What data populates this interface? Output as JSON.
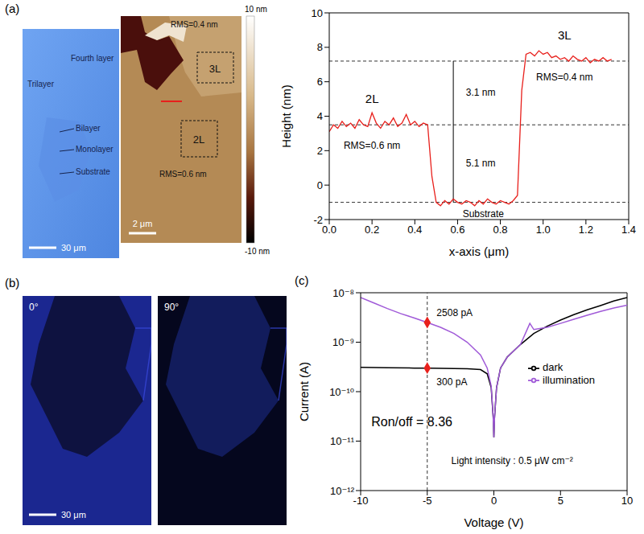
{
  "panel_labels": [
    "(a)",
    "(b)",
    "(c)"
  ],
  "images": {
    "optical": {
      "labels": [
        "Fourth layer",
        "Trilayer",
        "Bilayer",
        "Monolayer",
        "Substrate"
      ],
      "scale_bar": "30 μm"
    },
    "afm": {
      "labels": [
        "RMS=0.4 nm",
        "3L",
        "2L",
        "RMS=0.6 nm"
      ],
      "scale_bar": "2 μm",
      "colorbar": {
        "range": [
          -10,
          10
        ],
        "ticks": [
          {
            "value": 10,
            "label": "10 nm"
          },
          {
            "value": -10,
            "label": "-10 nm"
          }
        ]
      }
    },
    "polarized": [
      {
        "label": "0°",
        "scale_bar": "30 μm"
      },
      {
        "label": "90°"
      }
    ]
  },
  "chart_data": [
    {
      "type": "line",
      "xlabel": "x-axis (μm)",
      "ylabel": "Height (nm)",
      "xlim": [
        0,
        1.4
      ],
      "xticks": [
        {
          "value": 0,
          "label": "0.0"
        },
        0.2,
        0.4,
        0.6,
        0.8,
        {
          "value": 1,
          "label": "1.0"
        },
        1.2,
        1.4
      ],
      "ylim": [
        -2,
        10
      ],
      "yticks": [
        -2,
        0,
        2,
        4,
        6,
        8,
        10
      ],
      "series": [
        {
          "color": "#e8201c",
          "x": [
            0,
            0.02,
            0.04,
            0.06,
            0.08,
            0.1,
            0.12,
            0.14,
            0.16,
            0.18,
            0.2,
            0.22,
            0.24,
            0.26,
            0.28,
            0.3,
            0.32,
            0.34,
            0.36,
            0.38,
            0.4,
            0.42,
            0.44,
            0.46,
            0.48,
            0.5,
            0.52,
            0.54,
            0.56,
            0.58,
            0.6,
            0.62,
            0.64,
            0.66,
            0.68,
            0.7,
            0.72,
            0.74,
            0.76,
            0.78,
            0.8,
            0.82,
            0.84,
            0.86,
            0.88,
            0.9,
            0.92,
            0.94,
            0.96,
            0.98,
            1,
            1.02,
            1.04,
            1.06,
            1.08,
            1.1,
            1.12,
            1.14,
            1.16,
            1.18,
            1.2,
            1.22,
            1.24,
            1.26,
            1.28,
            1.3,
            1.32
          ],
          "values": [
            3.1,
            3.5,
            3.3,
            3.7,
            3.4,
            3.6,
            3.3,
            3.8,
            3.5,
            3.4,
            4.2,
            3.6,
            3.3,
            3.7,
            3.5,
            3.9,
            3.4,
            3.6,
            4.1,
            3.5,
            3.7,
            3.4,
            3.6,
            3.5,
            0.5,
            -1.0,
            -1.2,
            -0.9,
            -1.1,
            -0.8,
            -1.0,
            -1.1,
            -0.9,
            -1.0,
            -1.2,
            -0.9,
            -1.1,
            -0.8,
            -1.0,
            -1.1,
            -0.9,
            -1.0,
            -1.1,
            -0.9,
            -0.6,
            5.5,
            7.6,
            7.7,
            7.5,
            7.8,
            7.6,
            7.7,
            7.4,
            7.5,
            7.3,
            7.4,
            7.2,
            7.5,
            7.3,
            7.2,
            7.4,
            7.1,
            7.3,
            7.2,
            7.4,
            7.2,
            7.3
          ]
        }
      ],
      "hlines": [
        7.2,
        3.5,
        -1.0
      ],
      "annotations": [
        "2L",
        "3L",
        "RMS=0.6 nm",
        "RMS=0.4 nm",
        "3.1 nm",
        "5.1 nm",
        "Substrate"
      ]
    },
    {
      "type": "line",
      "log": "y",
      "xlabel": "Voltage (V)",
      "ylabel": "Current (A)",
      "xlim": [
        -10,
        10
      ],
      "xticks": [
        -10,
        -5,
        0,
        5,
        10
      ],
      "ylim": [
        1e-12,
        1e-08
      ],
      "yticks": [
        {
          "value": 1e-12,
          "label": "10⁻¹²"
        },
        {
          "value": 1e-11,
          "label": "10⁻¹¹"
        },
        {
          "value": 1e-10,
          "label": "10⁻¹⁰"
        },
        {
          "value": 1e-09,
          "label": "10⁻⁹"
        },
        {
          "value": 1e-08,
          "label": "10⁻⁸"
        }
      ],
      "legend": "right",
      "series": [
        {
          "name": "dark",
          "color": "#000000",
          "x": [
            -10,
            -8,
            -6,
            -5,
            -4,
            -2,
            -1,
            -0.5,
            -0.2,
            -0.05,
            0,
            0.05,
            0.2,
            0.5,
            1,
            2,
            3,
            4,
            5,
            6,
            7,
            8,
            9,
            10
          ],
          "values": [
            3.1e-10,
            3.05e-10,
            3e-10,
            3e-10,
            2.95e-10,
            2.9e-10,
            2.8e-10,
            2.3e-10,
            1.2e-10,
            3e-11,
            1.2e-11,
            3e-11,
            1.2e-10,
            3e-10,
            5e-10,
            9e-10,
            1.5e-09,
            2.1e-09,
            2.8e-09,
            3.6e-09,
            4.5e-09,
            5.5e-09,
            6.8e-09,
            8e-09
          ]
        },
        {
          "name": "illumination",
          "color": "#a05ad8",
          "x": [
            -10,
            -9,
            -8,
            -7,
            -6,
            -5,
            -4,
            -3,
            -2,
            -1,
            -0.5,
            -0.2,
            -0.05,
            0,
            0.05,
            0.2,
            0.5,
            1,
            2,
            2.7,
            3,
            4,
            5,
            6,
            7,
            8,
            9,
            10
          ],
          "values": [
            8e-09,
            6.2e-09,
            4.8e-09,
            3.8e-09,
            3.1e-09,
            2.508e-09,
            2e-09,
            1.5e-09,
            1e-09,
            5.5e-10,
            3e-10,
            1.3e-10,
            3e-11,
            1.2e-11,
            3e-11,
            1.2e-10,
            3e-10,
            5e-10,
            9e-10,
            2.4e-09,
            1.8e-09,
            2e-09,
            2.4e-09,
            2.9e-09,
            3.5e-09,
            4.2e-09,
            4.9e-09,
            5.6e-09
          ]
        }
      ],
      "vlines": [
        -5
      ],
      "highlights": {
        "color": "#e8201c",
        "points": [
          {
            "x": -5,
            "y": 2.508e-09,
            "label": "2508 pA"
          },
          {
            "x": -5,
            "y": 3e-10,
            "label": "300 pA"
          }
        ]
      },
      "annotations": [
        "Ron/off = 8.36",
        "Light intensity : 0.5 μW cm⁻²"
      ]
    }
  ]
}
